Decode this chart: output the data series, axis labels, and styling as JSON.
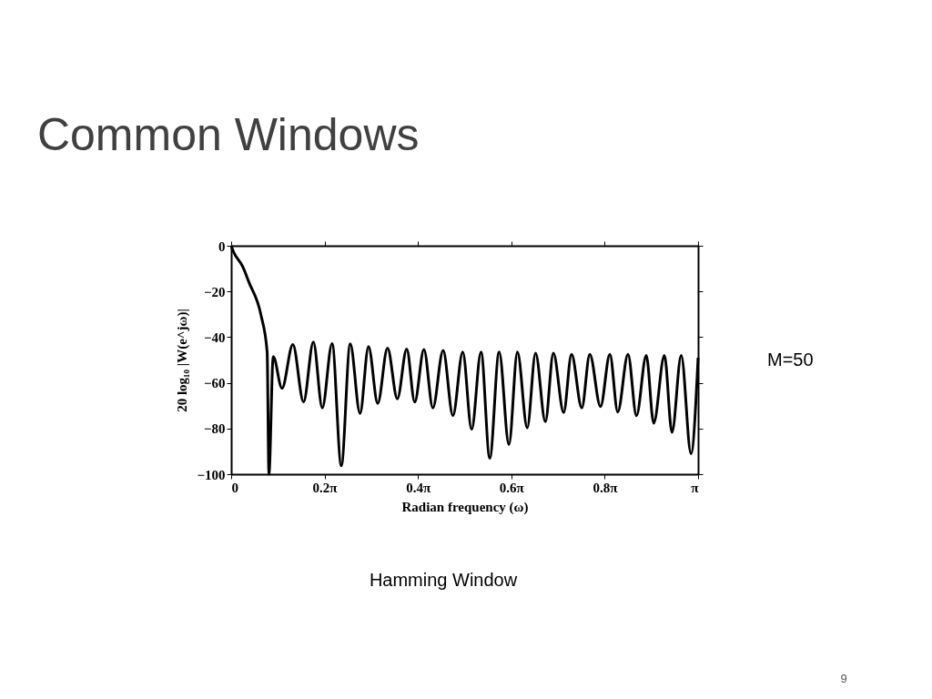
{
  "chart_data": {
    "type": "line",
    "title": "Common Windows",
    "xlabel": "Radian frequency (ω)",
    "ylabel": "20 log₁₀ |W(e^jω)|",
    "annotations": [
      "M=50",
      "Hamming Window",
      "9"
    ],
    "xlim": [
      0,
      3.1416
    ],
    "xticks": [
      0,
      {
        "value": 0.6283,
        "label": "0.2π"
      },
      {
        "value": 1.2566,
        "label": "0.4π"
      },
      {
        "value": 1.885,
        "label": "0.6π"
      },
      {
        "value": 2.5133,
        "label": "0.8π"
      },
      {
        "value": 3.1416,
        "label": "π"
      }
    ],
    "ylim": [
      -100,
      0
    ],
    "yticks": [
      -100,
      -80,
      -60,
      -40,
      -20,
      0
    ],
    "grid": false,
    "marker": "none",
    "line_style": "solid",
    "series": [
      {
        "color": "#000000",
        "x": [
          0,
          0.016,
          0.079,
          0.119,
          0.201,
          0.242,
          0.254,
          0.283,
          0.342,
          0.415,
          0.487,
          0.553,
          0.613,
          0.679,
          0.741,
          0.801,
          0.867,
          0.924,
          0.986,
          1.052,
          1.118,
          1.181,
          1.235,
          1.297,
          1.357,
          1.426,
          1.492,
          1.558,
          1.618,
          1.681,
          1.74,
          1.803,
          1.869,
          1.926,
          1.992,
          2.048,
          2.114,
          2.168,
          2.237,
          2.29,
          2.359,
          2.413,
          2.485,
          2.548,
          2.601,
          2.67,
          2.727,
          2.793,
          2.843,
          2.915,
          2.966,
          3.028,
          3.094,
          3.1416
        ],
        "values": [
          0,
          -2.7,
          -9.3,
          -15.9,
          -30.5,
          -46.5,
          -100,
          -48.5,
          -62.4,
          -43.2,
          -68.4,
          -42.1,
          -71,
          -42.8,
          -96.3,
          -42.9,
          -73.4,
          -44.1,
          -69,
          -44.8,
          -67,
          -45.2,
          -68.4,
          -45.4,
          -71,
          -45.8,
          -74.4,
          -46.5,
          -80.4,
          -46.5,
          -93,
          -46.5,
          -87,
          -46.5,
          -79.7,
          -47,
          -77,
          -47,
          -73,
          -47.5,
          -71,
          -47.5,
          -70.4,
          -47.5,
          -72.8,
          -47.5,
          -74.4,
          -48,
          -77.7,
          -48,
          -81.7,
          -48,
          -91,
          -49
        ]
      }
    ]
  }
}
